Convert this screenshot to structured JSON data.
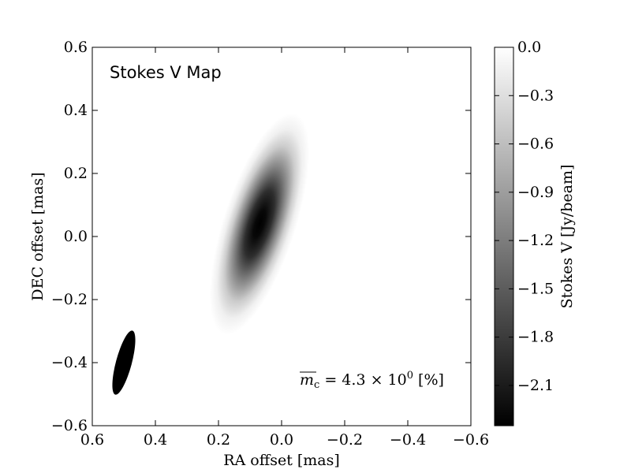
{
  "chart_data": {
    "type": "heatmap",
    "title": "Stokes V Map",
    "xlabel": "RA offset [mas]",
    "ylabel": "DEC offset [mas]",
    "xlim": [
      0.6,
      -0.6
    ],
    "ylim": [
      -0.6,
      0.6
    ],
    "x_ticks": [
      "0.6",
      "0.4",
      "0.2",
      "0.0",
      "−0.2",
      "−0.4",
      "−0.6"
    ],
    "x_tick_values": [
      0.6,
      0.4,
      0.2,
      0.0,
      -0.2,
      -0.4,
      -0.6
    ],
    "y_ticks": [
      "−0.6",
      "−0.4",
      "−0.2",
      "0.0",
      "0.2",
      "0.4",
      "0.6"
    ],
    "y_tick_values": [
      -0.6,
      -0.4,
      -0.2,
      0.0,
      0.2,
      0.4,
      0.6
    ],
    "colormap": "gray",
    "colorbar": {
      "label": "Stokes V [Jy/beam]",
      "range": [
        -2.35,
        0.0
      ],
      "ticks": [
        "0.0",
        "−0.3",
        "−0.6",
        "−0.9",
        "−1.2",
        "−1.5",
        "−1.8",
        "−2.1"
      ],
      "tick_values": [
        0.0,
        -0.3,
        -0.6,
        -0.9,
        -1.2,
        -1.5,
        -1.8,
        -2.1
      ]
    },
    "source": {
      "x": 0.07,
      "y": 0.04,
      "peak": -2.35,
      "major_fwhm": 0.32,
      "minor_fwhm": 0.1,
      "position_angle_deg": 18
    },
    "beam": {
      "x": 0.5,
      "y": -0.4,
      "major": 0.21,
      "minor": 0.05,
      "position_angle_deg": 15
    },
    "annotation": {
      "prefix": "m",
      "subscript": "c",
      "text": " =  4.3 × 10",
      "exponent": "0",
      "unit": " [%]"
    }
  }
}
